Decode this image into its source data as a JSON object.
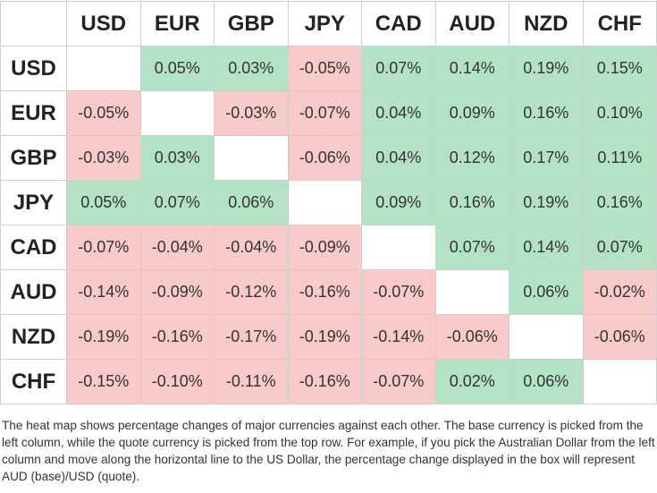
{
  "table": {
    "columns": [
      "USD",
      "EUR",
      "GBP",
      "JPY",
      "CAD",
      "AUD",
      "NZD",
      "CHF"
    ],
    "rows": [
      {
        "label": "USD",
        "cells": [
          null,
          "0.05%",
          "0.03%",
          "-0.05%",
          "0.07%",
          "0.14%",
          "0.19%",
          "0.15%"
        ]
      },
      {
        "label": "EUR",
        "cells": [
          "-0.05%",
          null,
          "-0.03%",
          "-0.07%",
          "0.04%",
          "0.09%",
          "0.16%",
          "0.10%"
        ]
      },
      {
        "label": "GBP",
        "cells": [
          "-0.03%",
          "0.03%",
          null,
          "-0.06%",
          "0.04%",
          "0.12%",
          "0.17%",
          "0.11%"
        ]
      },
      {
        "label": "JPY",
        "cells": [
          "0.05%",
          "0.07%",
          "0.06%",
          null,
          "0.09%",
          "0.16%",
          "0.19%",
          "0.16%"
        ]
      },
      {
        "label": "CAD",
        "cells": [
          "-0.07%",
          "-0.04%",
          "-0.04%",
          "-0.09%",
          null,
          "0.07%",
          "0.14%",
          "0.07%"
        ]
      },
      {
        "label": "AUD",
        "cells": [
          "-0.14%",
          "-0.09%",
          "-0.12%",
          "-0.16%",
          "-0.07%",
          null,
          "0.06%",
          "-0.02%"
        ]
      },
      {
        "label": "NZD",
        "cells": [
          "-0.19%",
          "-0.16%",
          "-0.17%",
          "-0.19%",
          "-0.14%",
          "-0.06%",
          null,
          "-0.06%"
        ]
      },
      {
        "label": "CHF",
        "cells": [
          "-0.15%",
          "-0.10%",
          "-0.11%",
          "-0.16%",
          "-0.07%",
          "0.02%",
          "0.06%",
          null
        ]
      }
    ],
    "positive_color": "#b3e3c4",
    "negative_color": "#f8caca"
  },
  "note": "The heat map shows percentage changes of major currencies against each other. The base currency is picked from the left column, while the quote currency is picked from the top row. For example, if you pick the Australian Dollar from the left column and move along the horizontal line to the US Dollar, the percentage change displayed in the box will represent AUD (base)/USD (quote)."
}
